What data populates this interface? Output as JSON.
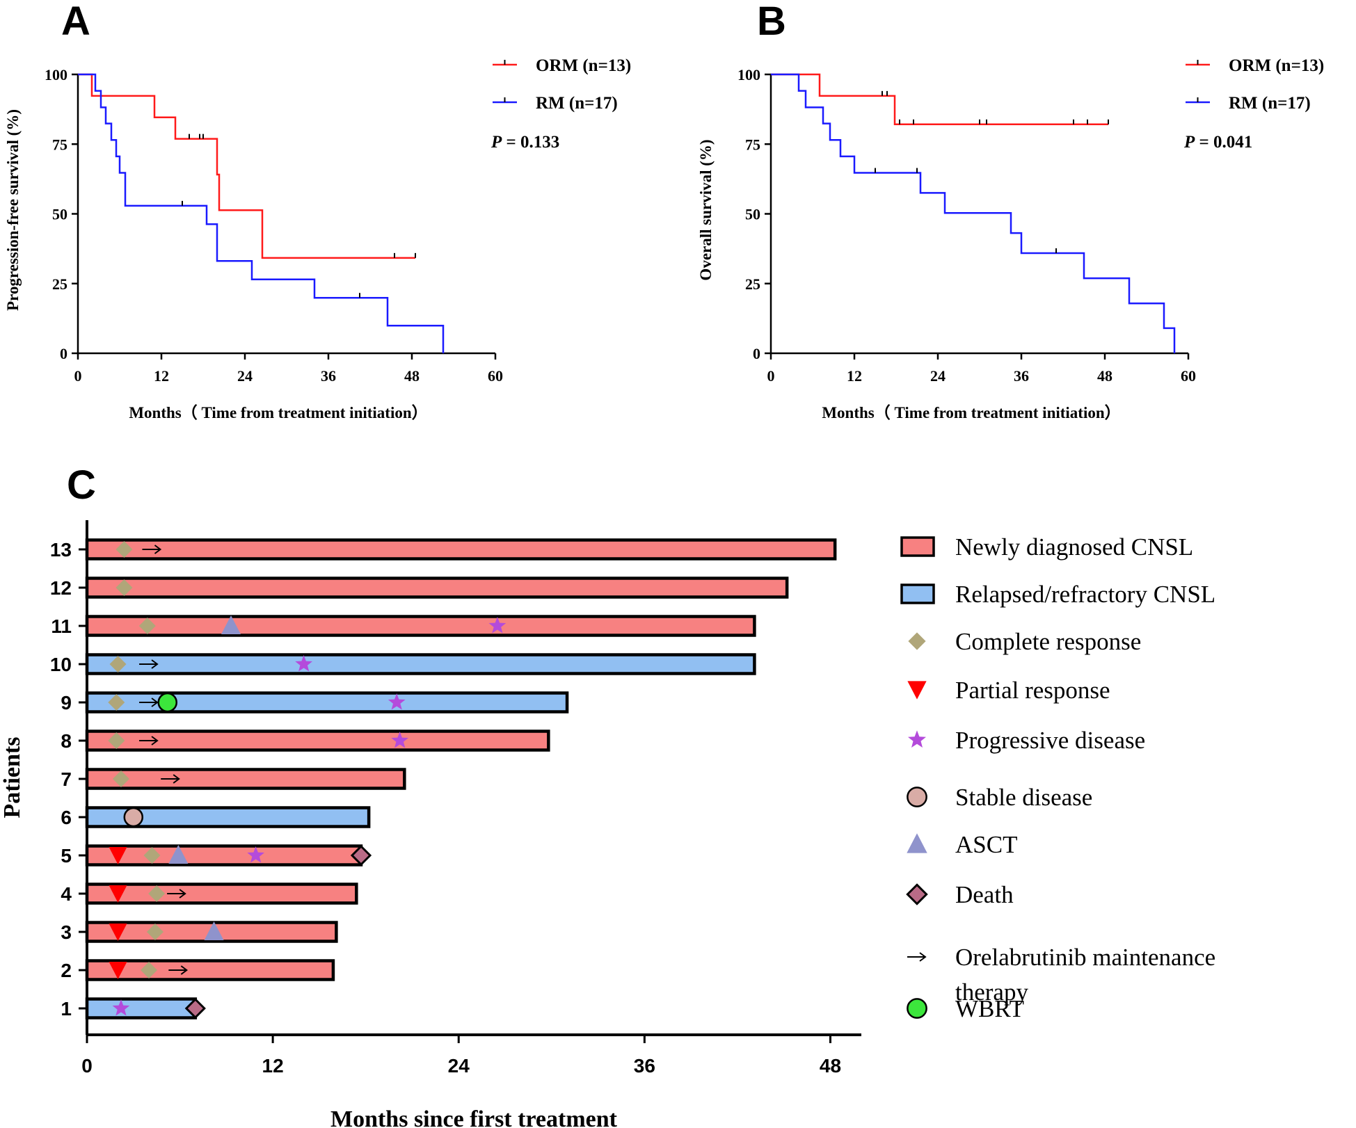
{
  "chart_data": [
    {
      "panel": "A",
      "type": "line",
      "subtype": "kaplan-meier",
      "ylabel": "Progression-free survival (%)",
      "xlabel": "Months（ Time from treatment initiation）",
      "xticks": [
        "0",
        "12",
        "24",
        "36",
        "48",
        "60"
      ],
      "yticks": [
        "0",
        "25",
        "50",
        "75",
        "100"
      ],
      "xlim": [
        0,
        60
      ],
      "ylim": [
        0,
        100
      ],
      "pvalue_label": "P",
      "pvalue_text": " = 0.133",
      "series": [
        {
          "name": "ORM (n=13)",
          "color": "#ff1a1a",
          "steps": [
            [
              0,
              100
            ],
            [
              2,
              92.3
            ],
            [
              11,
              84.6
            ],
            [
              14,
              76.9
            ],
            [
              20,
              64.1
            ],
            [
              20.3,
              51.3
            ],
            [
              26.5,
              34.2
            ],
            [
              48.5,
              34.2
            ]
          ],
          "censors": [
            [
              16,
              76.9
            ],
            [
              17.5,
              76.9
            ],
            [
              18,
              76.9
            ],
            [
              45.5,
              34.2
            ],
            [
              48.5,
              34.2
            ]
          ]
        },
        {
          "name": "RM (n=17)",
          "color": "#1a1aff",
          "steps": [
            [
              0,
              100
            ],
            [
              2.3,
              100
            ],
            [
              2.5,
              94.1
            ],
            [
              3.3,
              88.2
            ],
            [
              4,
              82.4
            ],
            [
              4.8,
              76.5
            ],
            [
              5.5,
              70.6
            ],
            [
              6,
              64.7
            ],
            [
              6.8,
              52.9
            ],
            [
              18.5,
              46.3
            ],
            [
              20,
              33.1
            ],
            [
              25,
              26.5
            ],
            [
              34,
              19.9
            ],
            [
              44.5,
              9.9
            ],
            [
              52.5,
              0
            ]
          ],
          "censors": [
            [
              15,
              52.9
            ],
            [
              40.5,
              19.9
            ]
          ]
        }
      ]
    },
    {
      "panel": "B",
      "type": "line",
      "subtype": "kaplan-meier",
      "ylabel": "Overall survival (%)",
      "xlabel": "Months（ Time from treatment initiation）",
      "xticks": [
        "0",
        "12",
        "24",
        "36",
        "48",
        "60"
      ],
      "yticks": [
        "0",
        "25",
        "50",
        "75",
        "100"
      ],
      "xlim": [
        0,
        60
      ],
      "ylim": [
        0,
        100
      ],
      "pvalue_label": "P",
      "pvalue_text": " = 0.041",
      "series": [
        {
          "name": "ORM (n=13)",
          "color": "#ff1a1a",
          "steps": [
            [
              0,
              100
            ],
            [
              7,
              92.3
            ],
            [
              17.8,
              82.1
            ],
            [
              48.5,
              82.1
            ]
          ],
          "censors": [
            [
              16,
              92.3
            ],
            [
              16.7,
              92.3
            ],
            [
              18.5,
              82.1
            ],
            [
              20.5,
              82.1
            ],
            [
              30,
              82.1
            ],
            [
              31,
              82.1
            ],
            [
              43.5,
              82.1
            ],
            [
              45.5,
              82.1
            ],
            [
              48.5,
              82.1
            ]
          ]
        },
        {
          "name": "RM (n=17)",
          "color": "#1a1aff",
          "steps": [
            [
              0,
              100
            ],
            [
              4,
              94.1
            ],
            [
              5,
              88.2
            ],
            [
              7.5,
              82.4
            ],
            [
              8.5,
              76.5
            ],
            [
              10,
              70.6
            ],
            [
              12,
              64.7
            ],
            [
              21.5,
              57.5
            ],
            [
              25,
              50.3
            ],
            [
              34.5,
              43.1
            ],
            [
              36,
              35.9
            ],
            [
              45,
              26.9
            ],
            [
              51.5,
              17.9
            ],
            [
              56.5,
              9.0
            ],
            [
              58,
              0
            ]
          ],
          "censors": [
            [
              15,
              64.7
            ],
            [
              21,
              64.7
            ],
            [
              41,
              35.9
            ]
          ]
        }
      ]
    },
    {
      "panel": "C",
      "type": "swimmer",
      "ylabel": "Patients",
      "xlabel": "Months since first treatment",
      "xticks": [
        "0",
        "12",
        "24",
        "36",
        "48"
      ],
      "xlim": [
        0,
        50
      ],
      "patients": [
        {
          "label": "1",
          "duration": 7,
          "group": "rr",
          "events": [
            {
              "type": "pd",
              "t": 2.2
            },
            {
              "type": "death",
              "t": 7
            }
          ]
        },
        {
          "label": "2",
          "duration": 15.9,
          "group": "nd",
          "events": [
            {
              "type": "pr",
              "t": 2
            },
            {
              "type": "cr",
              "t": 4
            },
            {
              "type": "arrow",
              "t": 5.9
            }
          ]
        },
        {
          "label": "3",
          "duration": 16.1,
          "group": "nd",
          "events": [
            {
              "type": "pr",
              "t": 2
            },
            {
              "type": "cr",
              "t": 4.4
            },
            {
              "type": "asct",
              "t": 8.2
            }
          ]
        },
        {
          "label": "4",
          "duration": 17.4,
          "group": "nd",
          "events": [
            {
              "type": "pr",
              "t": 2
            },
            {
              "type": "cr",
              "t": 4.5
            },
            {
              "type": "arrow",
              "t": 5.8
            }
          ]
        },
        {
          "label": "5",
          "duration": 17.7,
          "group": "nd",
          "events": [
            {
              "type": "pr",
              "t": 2
            },
            {
              "type": "cr",
              "t": 4.2
            },
            {
              "type": "asct",
              "t": 5.9
            },
            {
              "type": "pd",
              "t": 10.9
            },
            {
              "type": "death",
              "t": 17.7
            }
          ]
        },
        {
          "label": "6",
          "duration": 18.2,
          "group": "rr",
          "events": [
            {
              "type": "sd",
              "t": 3
            }
          ]
        },
        {
          "label": "7",
          "duration": 20.5,
          "group": "nd",
          "events": [
            {
              "type": "cr",
              "t": 2.2
            },
            {
              "type": "arrow",
              "t": 5.4
            }
          ]
        },
        {
          "label": "8",
          "duration": 29.8,
          "group": "nd",
          "events": [
            {
              "type": "cr",
              "t": 1.9
            },
            {
              "type": "arrow",
              "t": 4
            },
            {
              "type": "pd",
              "t": 20.2
            }
          ]
        },
        {
          "label": "9",
          "duration": 31,
          "group": "rr",
          "events": [
            {
              "type": "cr",
              "t": 1.9
            },
            {
              "type": "arrow",
              "t": 4
            },
            {
              "type": "wbrt",
              "t": 5.2
            },
            {
              "type": "pd",
              "t": 20
            }
          ]
        },
        {
          "label": "10",
          "duration": 43.1,
          "group": "rr",
          "events": [
            {
              "type": "cr",
              "t": 2
            },
            {
              "type": "arrow",
              "t": 4
            },
            {
              "type": "pd",
              "t": 14
            }
          ]
        },
        {
          "label": "11",
          "duration": 43.1,
          "group": "nd",
          "events": [
            {
              "type": "cr",
              "t": 3.9
            },
            {
              "type": "asct",
              "t": 9.3
            },
            {
              "type": "pd",
              "t": 26.5
            }
          ]
        },
        {
          "label": "12",
          "duration": 45.2,
          "group": "nd",
          "events": [
            {
              "type": "cr",
              "t": 2.4
            }
          ]
        },
        {
          "label": "13",
          "duration": 48.3,
          "group": "nd",
          "events": [
            {
              "type": "cr",
              "t": 2.4
            },
            {
              "type": "arrow",
              "t": 4.2
            }
          ]
        }
      ],
      "legend": [
        {
          "key": "nd",
          "label": "Newly diagnosed CNSL"
        },
        {
          "key": "rr",
          "label": "Relapsed/refractory CNSL"
        },
        {
          "key": "cr",
          "label": "Complete response"
        },
        {
          "key": "pr",
          "label": "Partial response"
        },
        {
          "key": "pd",
          "label": "Progressive disease"
        },
        {
          "key": "sd",
          "label": "Stable disease"
        },
        {
          "key": "asct",
          "label": "ASCT"
        },
        {
          "key": "death",
          "label": "Death"
        },
        {
          "key": "arrow",
          "label": "Orelabrutinib maintenance",
          "label2": "therapy"
        },
        {
          "key": "wbrt",
          "label": "WBRT"
        }
      ],
      "colors": {
        "nd": "#f78181",
        "rr": "#91bff2",
        "cr": "#b0a679",
        "pr": "#ff0000",
        "pd": "#b44bdb",
        "sd": "#d9aca6",
        "asct": "#8f93cc",
        "death": "#b96b86",
        "wbrt": "#3ce63c"
      }
    }
  ],
  "panels": [
    {
      "letter": "A"
    },
    {
      "letter": "B"
    },
    {
      "letter": "C"
    }
  ]
}
